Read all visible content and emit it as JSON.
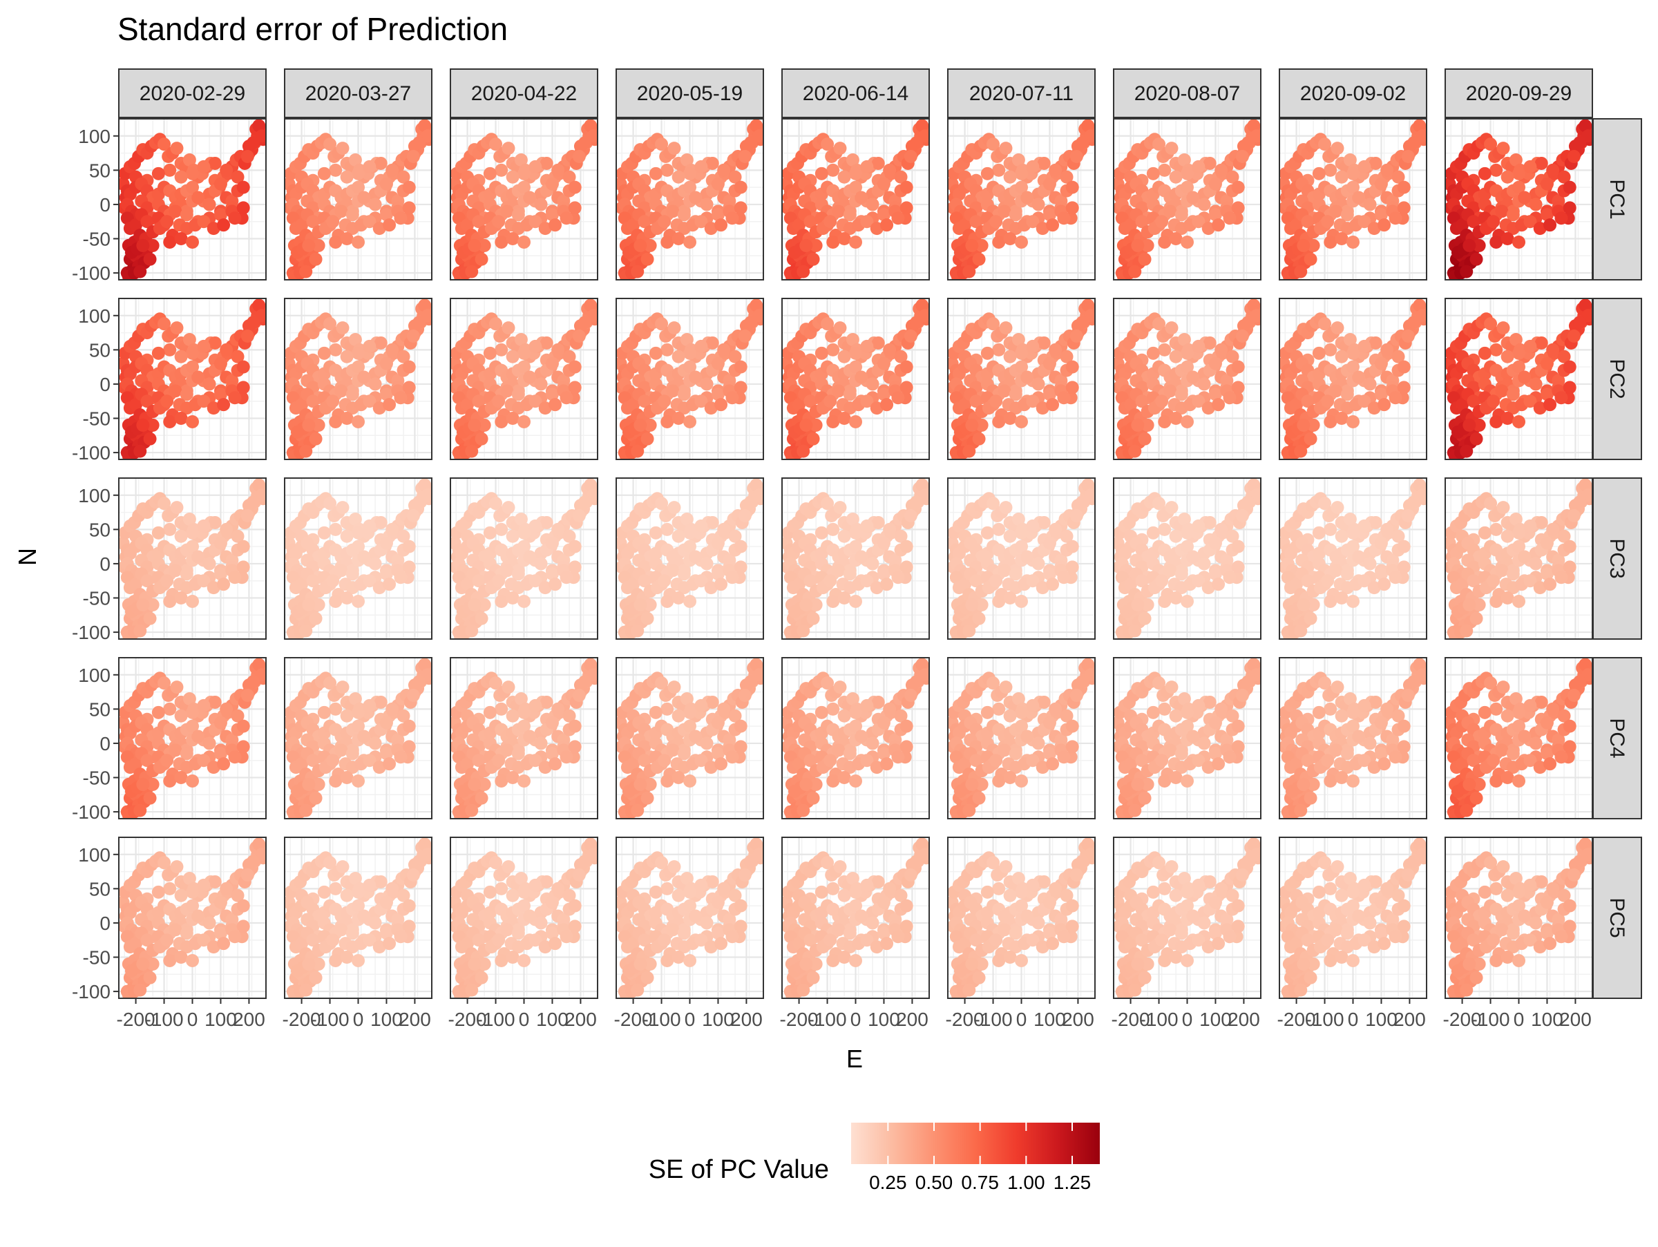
{
  "chart_data": {
    "type": "scatter",
    "title": "Standard error of Prediction",
    "xlabel": "E",
    "ylabel": "N",
    "facet_columns": [
      "2020-02-29",
      "2020-03-27",
      "2020-04-22",
      "2020-05-19",
      "2020-06-14",
      "2020-07-11",
      "2020-08-07",
      "2020-09-02",
      "2020-09-29"
    ],
    "facet_rows": [
      "PC1",
      "PC2",
      "PC3",
      "PC4",
      "PC5"
    ],
    "x_ticks": [
      -200,
      -100,
      0,
      100,
      200
    ],
    "x_tick_labels": [
      "-200",
      "-100",
      "0",
      "100",
      "200"
    ],
    "y_ticks": [
      -100,
      -50,
      0,
      50,
      100
    ],
    "y_tick_labels": [
      "-100",
      "-50",
      "0",
      "50",
      "100"
    ],
    "xlim": [
      -260,
      260
    ],
    "ylim": [
      -110,
      125
    ],
    "grid": true,
    "legend": {
      "title": "SE of PC Value",
      "position": "bottom",
      "range": [
        0.05,
        1.4
      ],
      "ticks": [
        0.25,
        0.5,
        0.75,
        1.0,
        1.25
      ],
      "tick_labels": [
        "0.25",
        "0.50",
        "0.75",
        "1.00",
        "1.25"
      ],
      "colors": [
        "#fee0d2",
        "#fcbba1",
        "#fc9272",
        "#fb6a4a",
        "#ef3b2c",
        "#cb181d",
        "#99000d"
      ]
    },
    "station_coordinates": {
      "E": [
        -245,
        -238,
        -230,
        -220,
        -205,
        -190,
        -175,
        -160,
        -145,
        -130,
        -115,
        -100,
        -85,
        -70,
        -55,
        -40,
        -25,
        -10,
        5,
        20,
        35,
        50,
        65,
        80,
        95,
        110,
        125,
        140,
        155,
        170,
        185,
        200,
        210,
        220,
        230,
        240,
        245,
        250,
        200,
        160,
        120,
        80,
        40,
        0,
        -40,
        -80,
        -120,
        -160,
        -200,
        -235,
        -240,
        -220,
        -200,
        -180,
        -160,
        -140,
        -120,
        -100,
        -80,
        -60,
        -40,
        -20,
        0,
        20,
        40,
        60,
        80,
        100,
        120,
        140,
        160,
        180,
        -230,
        -215,
        -200,
        -180,
        -160,
        -140,
        -120,
        -100,
        -80,
        -60,
        -40,
        -20,
        0,
        20,
        60,
        100,
        140,
        175,
        -230,
        -220,
        -200,
        -180,
        -160,
        -140,
        -120,
        -100,
        -60,
        -20,
        20,
        60,
        100,
        140,
        180,
        -225,
        -205,
        -185,
        -165,
        -140,
        -115,
        -90,
        -70,
        -45,
        -20,
        10,
        40,
        75,
        110,
        150,
        -220,
        -200,
        -180,
        -160,
        -140,
        -80,
        -40,
        0,
        -230,
        -210,
        -190,
        -170,
        -150,
        -215,
        -195,
        -175,
        -225,
        -205,
        -185,
        225,
        235,
        245,
        215,
        195
      ],
      "N": [
        30,
        45,
        20,
        55,
        60,
        70,
        80,
        75,
        85,
        90,
        95,
        88,
        70,
        75,
        82,
        60,
        55,
        65,
        50,
        40,
        45,
        55,
        60,
        35,
        25,
        40,
        45,
        55,
        65,
        70,
        60,
        75,
        80,
        90,
        100,
        110,
        105,
        95,
        85,
        40,
        50,
        60,
        55,
        45,
        40,
        50,
        45,
        35,
        40,
        10,
        -5,
        15,
        25,
        30,
        20,
        10,
        15,
        25,
        20,
        10,
        15,
        20,
        25,
        10,
        5,
        15,
        20,
        30,
        10,
        5,
        20,
        25,
        0,
        -10,
        -15,
        5,
        -5,
        -20,
        0,
        -10,
        -15,
        -5,
        0,
        -10,
        5,
        10,
        0,
        -10,
        -5,
        -20,
        -20,
        -35,
        -30,
        -15,
        -25,
        -40,
        -20,
        -30,
        -10,
        -15,
        -25,
        -20,
        -15,
        -10,
        -5,
        -60,
        -55,
        -45,
        -50,
        -40,
        -35,
        -25,
        -45,
        -30,
        -35,
        -30,
        -25,
        -35,
        -30,
        -20,
        -80,
        -75,
        -70,
        -65,
        -60,
        -55,
        -50,
        -55,
        -100,
        -95,
        -90,
        -85,
        -80,
        -70,
        -65,
        -60,
        -105,
        -100,
        -98,
        110,
        115,
        100,
        90,
        70
      ]
    }
  }
}
